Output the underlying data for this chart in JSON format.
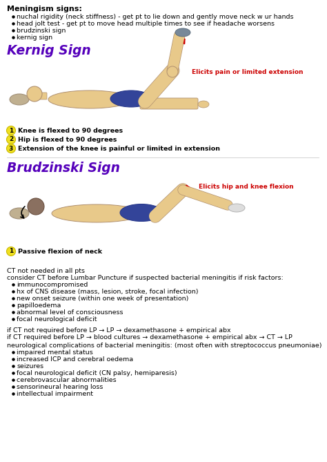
{
  "bg_color": "#ffffff",
  "figsize": [
    4.74,
    6.69
  ],
  "dpi": 100,
  "meningism_title": "Meningism signs:",
  "meningism_bullets": [
    "nuchal rigidity (neck stiffness) - get pt to lie down and gently move neck w ur hands",
    "head jolt test - get pt to move head multiple times to see if headache worsens",
    "brudzinski sign",
    "kernig sign"
  ],
  "kernig_title": "Kernig Sign",
  "kernig_color": "#5500bb",
  "kernig_label": "Elicits pain or limited extension",
  "kernig_label_color": "#cc0000",
  "kernig_steps": [
    "Knee is flexed to 90 degrees",
    "Hip is flexed to 90 degrees",
    "Extension of the knee is painful or limited in extension"
  ],
  "brudzinski_title": "Brudzinski Sign",
  "brudzinski_color": "#5500bb",
  "brudzinski_label": "Elicits hip and knee flexion",
  "brudzinski_label_color": "#cc0000",
  "brudzinski_steps": [
    "Passive flexion of neck"
  ],
  "ct_line1": "CT not needed in all pts",
  "ct_line2": "consider CT before Lumbar Puncture if suspected bacterial meningitis if risk factors:",
  "ct_bullets": [
    "immunocompromised",
    "hx of CNS disease (mass, lesion, stroke, focal infection)",
    "new onset seizure (within one week of presentation)",
    "papilloedema",
    "abnormal level of consciousness",
    "focal neurological deficit"
  ],
  "if_ct1": "if CT not required before LP → LP → dexamethasone + empirical abx",
  "if_ct2": "if CT required before LP → blood cultures → dexamethasone + empirical abx → CT → LP",
  "neuro_title": "neurological complications of bacterial meningitis: (most often with streptococcus pneumoniae)",
  "neuro_bullets": [
    "impaired mental status",
    "increased ICP and cerebral oedema",
    "seizures",
    "focal neurological deficit (CN palsy, hemiparesis)",
    "cerebrovascular abnormalities",
    "sensorineural hearing loss",
    "intellectual impairment"
  ],
  "text_color": "#000000",
  "skin_color": "#e8c98a",
  "shorts_color": "#334499",
  "circle_yellow": "#f0e020",
  "arrow_red": "#cc0000",
  "font_size_body": 6.8,
  "font_size_bold_title": 8.0,
  "font_size_sign": 13.5
}
